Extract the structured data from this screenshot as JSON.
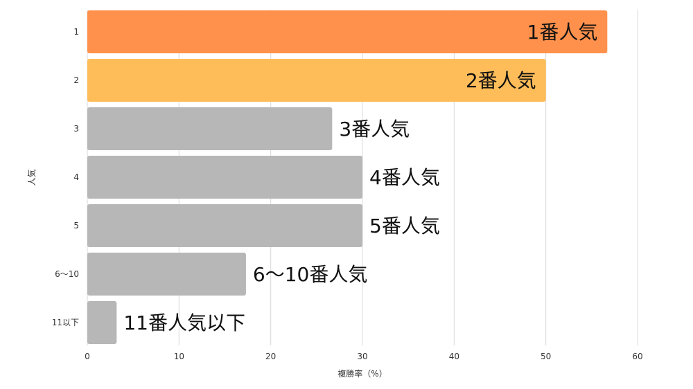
{
  "chart_data": {
    "type": "bar",
    "orientation": "horizontal",
    "categories": [
      "1",
      "2",
      "3",
      "4",
      "5",
      "6～10",
      "11以下"
    ],
    "values": [
      56.7,
      50.0,
      26.7,
      30.0,
      30.0,
      17.3,
      3.2
    ],
    "bar_labels": [
      "1番人気",
      "2番人気",
      "3番人気",
      "4番人気",
      "5番人気",
      "6～10番人気",
      "11番人気以下"
    ],
    "bar_colors": [
      "#ff914d",
      "#ffbd59",
      "#b7b7b7",
      "#b7b7b7",
      "#b7b7b7",
      "#b7b7b7",
      "#b7b7b7"
    ],
    "xlabel": "複勝率（%）",
    "ylabel": "人気",
    "xlim": [
      0,
      60
    ],
    "xticks": [
      0,
      10,
      20,
      30,
      40,
      50,
      60
    ],
    "grid": "vertical"
  }
}
